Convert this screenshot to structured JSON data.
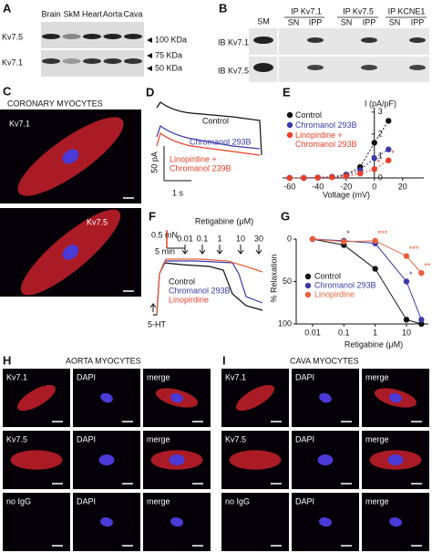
{
  "a": {
    "label": "A",
    "lanes": [
      "Brain",
      "SkM",
      "Heart",
      "Aorta",
      "Cava"
    ],
    "rows": [
      "Kv7.5",
      "Kv7.1"
    ],
    "markers": [
      "100 KDa",
      "75 KDa",
      "50 KDa"
    ]
  },
  "b": {
    "label": "B",
    "headers": [
      "SM",
      "IP Kv7.1",
      "IP Kv7.5",
      "IP KCNE1"
    ],
    "sub": [
      "SN",
      "IPP",
      "SN",
      "IPP",
      "SN",
      "IPP"
    ],
    "rows": [
      "IB Kv7.1",
      "IB Kv7.5"
    ]
  },
  "c": {
    "label": "C",
    "title": "CORONARY MYOCYTES",
    "images": [
      "Kv7.1",
      "Kv7.5"
    ]
  },
  "d": {
    "label": "D",
    "traces": [
      "Control",
      "Chromanol 293B",
      "Linopirdine +",
      "Chromanol 239B"
    ],
    "scale_y": "50 pA",
    "scale_x": "1 s"
  },
  "e": {
    "label": "E",
    "chart": {
      "type": "scatter",
      "y_label": "I (pA/pF)",
      "x_label": "Voltage (mV)",
      "x": [
        -60,
        -50,
        -40,
        -30,
        -20,
        -10,
        0,
        10
      ],
      "xlim": [
        -65,
        35
      ],
      "xticks": [
        -60,
        -40,
        -20,
        0,
        20
      ],
      "ylim": [
        0,
        3.2
      ],
      "yticks": [
        0,
        1,
        2,
        3
      ],
      "series": [
        {
          "name": "Control",
          "color": "#111111",
          "values": [
            0,
            0,
            0.02,
            0.05,
            0.15,
            0.5,
            1.6,
            2.6
          ],
          "annotations": [
            null,
            null,
            null,
            null,
            null,
            null,
            null,
            null
          ]
        },
        {
          "name": "Chromanol 293B",
          "color": "#3a3aa8",
          "values": [
            0,
            0,
            0.02,
            0.05,
            0.12,
            0.35,
            0.9,
            1.3
          ],
          "annotations": [
            null,
            null,
            null,
            null,
            null,
            null,
            null,
            null
          ]
        },
        {
          "name": "Linopirdine + Chromanol 293B",
          "color": "#e8402a",
          "values": [
            0,
            0,
            0.01,
            0.03,
            0.08,
            0.2,
            0.4,
            0.8
          ],
          "annotations": [
            null,
            null,
            null,
            null,
            null,
            null,
            "*",
            "*"
          ]
        }
      ]
    }
  },
  "f": {
    "label": "F",
    "scale_y": "0.5 mN",
    "scale_x": "5 min",
    "drug": "Retigabine (μM)",
    "doses": [
      "0.01",
      "0.1",
      "1",
      "10",
      "30"
    ],
    "legend": [
      "Control",
      "Chromanol 293B",
      "Linopirdine"
    ],
    "agonist": "5-HT"
  },
  "g": {
    "label": "G",
    "chart": {
      "type": "line",
      "y_label": "% Relaxation",
      "x_label": "Retigabine (μM)",
      "log_x": true,
      "y_inverted": true,
      "x": [
        0.01,
        0.1,
        1,
        10,
        30
      ],
      "xlim": [
        0.003,
        50
      ],
      "xticks": [
        0.01,
        0.1,
        1,
        10
      ],
      "ylim": [
        0,
        100
      ],
      "yticks": [
        0,
        50,
        100
      ],
      "series": [
        {
          "name": "Control",
          "color": "#111111",
          "values": [
            0,
            7,
            35,
            95,
            100
          ],
          "annotations": [
            null,
            null,
            null,
            null,
            null
          ]
        },
        {
          "name": "Chromanol 293B",
          "color": "#3a3aa8",
          "values": [
            0,
            2,
            5,
            50,
            95
          ],
          "annotations": [
            null,
            "*",
            null,
            "*",
            null
          ]
        },
        {
          "name": "Linopirdine",
          "color": "#e8603a",
          "values": [
            0,
            3,
            2,
            20,
            40
          ],
          "annotations": [
            null,
            null,
            "***",
            "***",
            "**"
          ]
        }
      ]
    }
  },
  "h": {
    "label": "H",
    "title": "AORTA MYOCYTES",
    "rows": [
      [
        "Kv7.1",
        "DAPI",
        "merge"
      ],
      [
        "Kv7.5",
        "DAPI",
        "merge"
      ],
      [
        "no IgG",
        "DAPI",
        "merge"
      ]
    ]
  },
  "i": {
    "label": "I",
    "title": "CAVA MYOCYTES",
    "rows": [
      [
        "Kv7.1",
        "DAPI",
        "merge"
      ],
      [
        "Kv7.5",
        "DAPI",
        "merge"
      ],
      [
        "no IgG",
        "DAPI",
        "merge"
      ]
    ]
  }
}
